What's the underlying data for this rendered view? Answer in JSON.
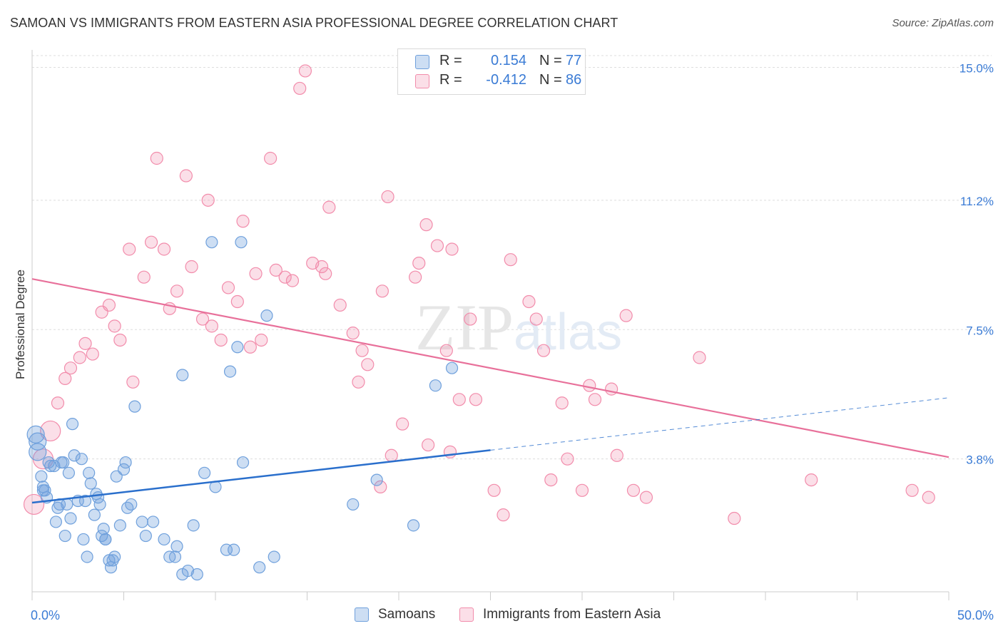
{
  "title": "SAMOAN VS IMMIGRANTS FROM EASTERN ASIA PROFESSIONAL DEGREE CORRELATION CHART",
  "source": "Source: ZipAtlas.com",
  "watermark": {
    "part1": "ZIP",
    "part2": "atlas"
  },
  "legend": {
    "rows": [
      {
        "r_label": "R =",
        "r_value": "0.154",
        "n_label": "N =",
        "n_value": "77",
        "color": "#6fa0dc"
      },
      {
        "r_label": "R =",
        "r_value": "-0.412",
        "n_label": "N =",
        "n_value": "86",
        "color": "#f28cab"
      }
    ]
  },
  "bottom_legend": [
    {
      "label": "Samoans",
      "color": "#6fa0dc"
    },
    {
      "label": "Immigrants from Eastern Asia",
      "color": "#f28cab"
    }
  ],
  "colors": {
    "samoans_fill": "rgba(111,160,220,0.35)",
    "samoans_stroke": "#6fa0dc",
    "samoans_line": "#2a6fcc",
    "immigrants_fill": "rgba(242,140,171,0.28)",
    "immigrants_stroke": "#f28cab",
    "immigrants_line": "#e8709a",
    "tick_label": "#3a7bd5",
    "grid": "#dddddd"
  },
  "chart_data": {
    "type": "scatter",
    "title": "SAMOAN VS IMMIGRANTS FROM EASTERN ASIA PROFESSIONAL DEGREE CORRELATION CHART",
    "xlabel": "",
    "ylabel": "Professional Degree",
    "xlim": [
      0,
      50
    ],
    "ylim": [
      0,
      15.5
    ],
    "x_tick_labels": [
      "0.0%",
      "50.0%"
    ],
    "y_ticks": [
      3.8,
      7.5,
      11.2,
      15.0
    ],
    "y_tick_labels": [
      "3.8%",
      "7.5%",
      "11.2%",
      "15.0%"
    ],
    "grid": "horizontal dashed",
    "legend_position": "top-center",
    "series": [
      {
        "name": "Samoans",
        "r": 0.154,
        "n": 77,
        "trend": {
          "x": [
            0,
            25
          ],
          "y": [
            2.55,
            4.05
          ]
        },
        "trend_extension": {
          "x": [
            25,
            50
          ],
          "y": [
            4.05,
            5.55
          ]
        },
        "points": [
          [
            0.2,
            4.5
          ],
          [
            0.3,
            4.3
          ],
          [
            0.3,
            4.0
          ],
          [
            0.5,
            3.3
          ],
          [
            0.6,
            3.0
          ],
          [
            0.7,
            2.9
          ],
          [
            0.8,
            2.7
          ],
          [
            0.9,
            3.7
          ],
          [
            1.0,
            3.6
          ],
          [
            1.2,
            3.6
          ],
          [
            1.3,
            2.0
          ],
          [
            1.4,
            2.4
          ],
          [
            1.5,
            2.5
          ],
          [
            1.7,
            3.7
          ],
          [
            1.8,
            1.6
          ],
          [
            1.9,
            2.5
          ],
          [
            2.0,
            3.4
          ],
          [
            2.1,
            2.1
          ],
          [
            2.2,
            4.8
          ],
          [
            2.3,
            3.9
          ],
          [
            2.5,
            2.6
          ],
          [
            2.7,
            3.8
          ],
          [
            2.8,
            1.5
          ],
          [
            2.9,
            2.6
          ],
          [
            3.0,
            1.0
          ],
          [
            3.1,
            3.4
          ],
          [
            3.2,
            3.1
          ],
          [
            3.4,
            2.2
          ],
          [
            3.5,
            2.8
          ],
          [
            3.6,
            2.7
          ],
          [
            3.7,
            2.5
          ],
          [
            3.9,
            1.8
          ],
          [
            4.0,
            1.5
          ],
          [
            4.0,
            1.5
          ],
          [
            4.2,
            0.9
          ],
          [
            4.3,
            0.7
          ],
          [
            4.4,
            0.9
          ],
          [
            4.5,
            1.0
          ],
          [
            4.6,
            3.3
          ],
          [
            4.8,
            1.9
          ],
          [
            5.0,
            3.5
          ],
          [
            5.1,
            3.7
          ],
          [
            5.2,
            2.4
          ],
          [
            5.4,
            2.5
          ],
          [
            5.6,
            5.3
          ],
          [
            6.0,
            2.0
          ],
          [
            6.2,
            1.6
          ],
          [
            6.6,
            2.0
          ],
          [
            7.2,
            1.5
          ],
          [
            7.5,
            1.0
          ],
          [
            7.8,
            1.0
          ],
          [
            7.9,
            1.3
          ],
          [
            8.2,
            0.5
          ],
          [
            8.2,
            6.2
          ],
          [
            8.5,
            0.6
          ],
          [
            8.8,
            1.9
          ],
          [
            9.0,
            0.5
          ],
          [
            9.4,
            3.4
          ],
          [
            9.8,
            10.0
          ],
          [
            10.0,
            3.0
          ],
          [
            10.6,
            1.2
          ],
          [
            10.8,
            6.3
          ],
          [
            11.0,
            1.2
          ],
          [
            11.2,
            7.0
          ],
          [
            11.5,
            3.7
          ],
          [
            12.4,
            0.7
          ],
          [
            12.8,
            7.9
          ],
          [
            13.2,
            1.0
          ],
          [
            17.5,
            2.5
          ],
          [
            18.8,
            3.2
          ],
          [
            20.8,
            1.9
          ],
          [
            22.0,
            5.9
          ],
          [
            22.9,
            6.4
          ],
          [
            11.4,
            10.0
          ],
          [
            0.6,
            2.9
          ],
          [
            1.6,
            3.7
          ],
          [
            3.8,
            1.6
          ]
        ]
      },
      {
        "name": "Immigrants from Eastern Asia",
        "r": -0.412,
        "n": 86,
        "trend": {
          "x": [
            0,
            50
          ],
          "y": [
            8.95,
            3.85
          ]
        },
        "points": [
          [
            0.1,
            2.5
          ],
          [
            0.6,
            3.8
          ],
          [
            1.0,
            4.6
          ],
          [
            1.4,
            5.4
          ],
          [
            1.8,
            6.1
          ],
          [
            2.1,
            6.4
          ],
          [
            2.6,
            6.7
          ],
          [
            2.9,
            7.1
          ],
          [
            3.3,
            6.8
          ],
          [
            3.8,
            8.0
          ],
          [
            4.2,
            8.2
          ],
          [
            4.5,
            7.6
          ],
          [
            4.8,
            7.2
          ],
          [
            5.3,
            9.8
          ],
          [
            5.5,
            6.0
          ],
          [
            6.1,
            9.0
          ],
          [
            6.5,
            10.0
          ],
          [
            6.8,
            12.4
          ],
          [
            7.2,
            9.8
          ],
          [
            7.5,
            8.1
          ],
          [
            7.9,
            8.6
          ],
          [
            8.4,
            11.9
          ],
          [
            8.7,
            9.3
          ],
          [
            9.3,
            7.8
          ],
          [
            9.6,
            11.2
          ],
          [
            9.8,
            7.6
          ],
          [
            10.3,
            7.2
          ],
          [
            10.7,
            8.7
          ],
          [
            11.2,
            8.3
          ],
          [
            11.5,
            10.6
          ],
          [
            11.9,
            7.0
          ],
          [
            12.2,
            9.1
          ],
          [
            12.5,
            7.2
          ],
          [
            13.0,
            12.4
          ],
          [
            13.3,
            9.2
          ],
          [
            13.8,
            9.0
          ],
          [
            14.2,
            8.9
          ],
          [
            14.6,
            14.4
          ],
          [
            14.9,
            14.9
          ],
          [
            15.3,
            9.4
          ],
          [
            15.8,
            9.3
          ],
          [
            16.0,
            9.1
          ],
          [
            16.2,
            11.0
          ],
          [
            16.8,
            8.2
          ],
          [
            17.5,
            7.4
          ],
          [
            17.8,
            6.0
          ],
          [
            18.0,
            6.9
          ],
          [
            18.3,
            6.5
          ],
          [
            19.0,
            3.0
          ],
          [
            19.1,
            8.6
          ],
          [
            19.4,
            11.3
          ],
          [
            19.6,
            3.9
          ],
          [
            20.2,
            4.8
          ],
          [
            20.9,
            9.0
          ],
          [
            21.1,
            9.4
          ],
          [
            21.5,
            10.5
          ],
          [
            21.6,
            4.2
          ],
          [
            22.1,
            9.9
          ],
          [
            22.6,
            6.9
          ],
          [
            22.8,
            4.0
          ],
          [
            22.9,
            9.8
          ],
          [
            23.3,
            5.5
          ],
          [
            23.9,
            7.8
          ],
          [
            24.2,
            5.5
          ],
          [
            25.2,
            2.9
          ],
          [
            25.7,
            2.2
          ],
          [
            26.1,
            9.5
          ],
          [
            27.1,
            8.3
          ],
          [
            27.5,
            7.8
          ],
          [
            27.9,
            6.9
          ],
          [
            28.3,
            3.2
          ],
          [
            28.9,
            5.4
          ],
          [
            29.2,
            3.8
          ],
          [
            30.0,
            2.9
          ],
          [
            30.4,
            5.9
          ],
          [
            30.7,
            5.5
          ],
          [
            31.6,
            5.8
          ],
          [
            31.9,
            3.9
          ],
          [
            32.4,
            7.9
          ],
          [
            32.8,
            2.9
          ],
          [
            33.5,
            2.7
          ],
          [
            36.4,
            6.7
          ],
          [
            38.3,
            2.1
          ],
          [
            42.5,
            3.2
          ],
          [
            48.0,
            2.9
          ],
          [
            48.9,
            2.7
          ]
        ]
      }
    ]
  }
}
